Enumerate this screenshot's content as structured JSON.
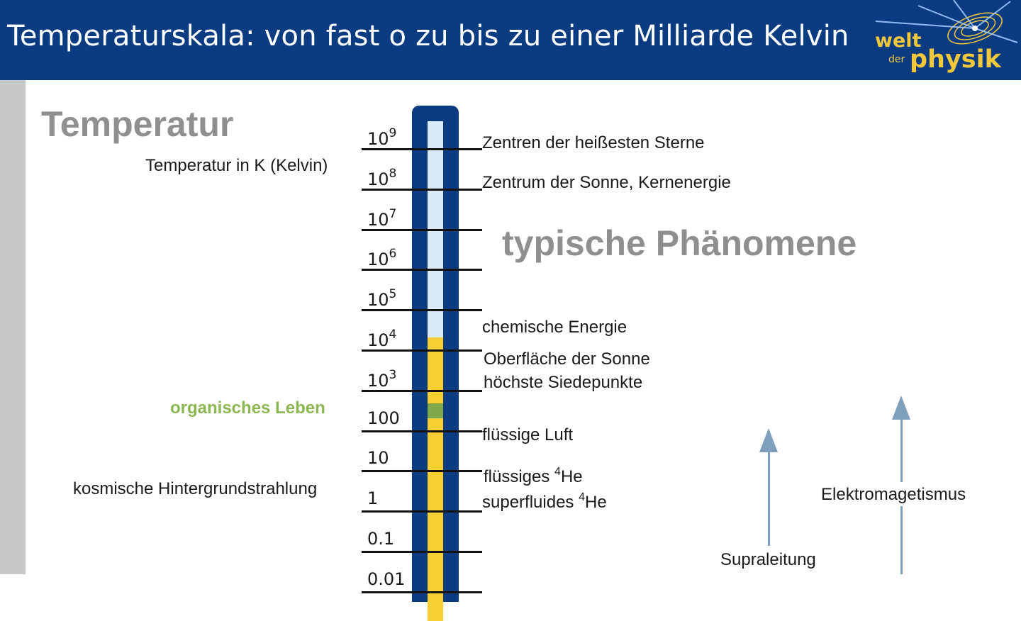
{
  "header": {
    "title": "Temperaturskala: von fast o zu bis zu einer Milliarde Kelvin",
    "logo": {
      "line1": "welt",
      "line2": "der",
      "line3": "physik"
    }
  },
  "headings": {
    "temperature": "Temperatur",
    "temperature_unit": "Temperatur in K (Kelvin)",
    "phenomena": "typische Phänomene"
  },
  "scale": {
    "ticks": [
      {
        "base": "10",
        "exp": "9"
      },
      {
        "base": "10",
        "exp": "8"
      },
      {
        "base": "10",
        "exp": "7"
      },
      {
        "base": "10",
        "exp": "6"
      },
      {
        "base": "10",
        "exp": "5"
      },
      {
        "base": "10",
        "exp": "4"
      },
      {
        "base": "10",
        "exp": "3"
      },
      {
        "base": "100",
        "exp": ""
      },
      {
        "base": "10",
        "exp": ""
      },
      {
        "base": "1",
        "exp": ""
      },
      {
        "base": "0.1",
        "exp": ""
      },
      {
        "base": "0.01",
        "exp": ""
      }
    ]
  },
  "left_labels": {
    "organic": "organisches Leben",
    "cmb": "kosmische Hintergrundstrahlung"
  },
  "phenomena": {
    "hottest_stars": "Zentren der heißesten Sterne",
    "sun_core": "Zentrum der Sonne, Kernenergie",
    "chemical": "chemische Energie",
    "sun_surface": "Oberfläche der Sonne",
    "boiling": "höchste Siedepunkte",
    "liquid_air": "flüssige Luft",
    "liquid_he_text": "flüssiges ",
    "superfluid_he_text": "superfluides ",
    "he_sup": "4",
    "he": "He",
    "superconductivity": "Supraleitung",
    "electromagnetism": "Elektromagetismus"
  },
  "colors": {
    "header_bg": "#0b3c82",
    "logo_gold": "#f2c83a",
    "bar_blue": "#daeaf8",
    "bar_yellow": "#f6cf32",
    "bar_green": "#7fa84a",
    "arrow": "#7f9fbf",
    "heading_grey": "#8f8f8f",
    "organic_green": "#8cb652"
  }
}
